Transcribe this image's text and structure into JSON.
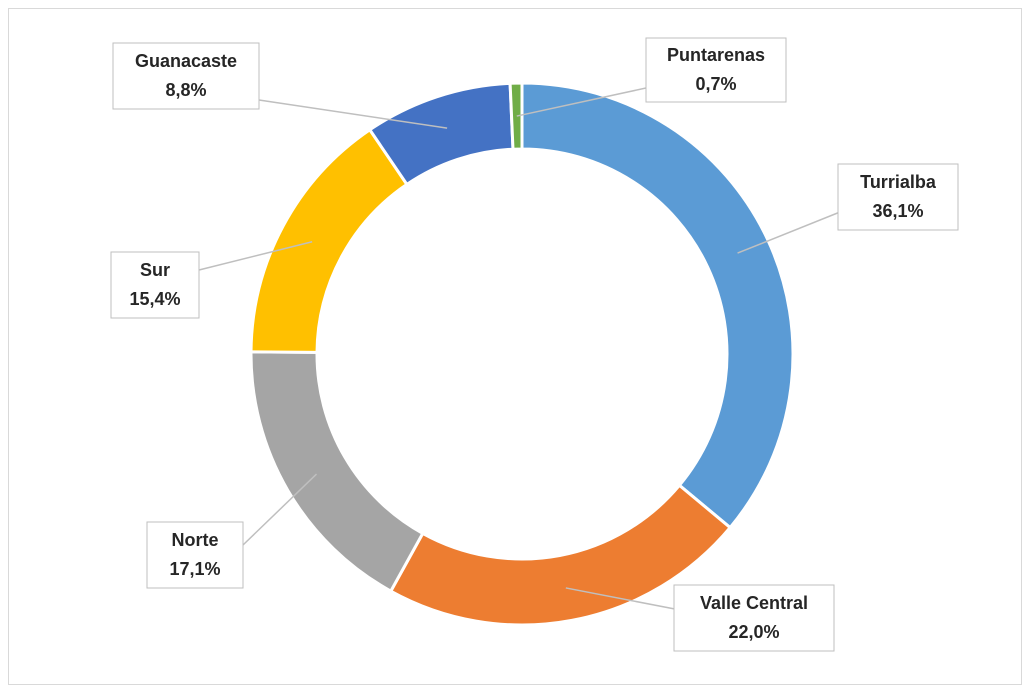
{
  "chart_data": {
    "type": "donut",
    "categories": [
      "Turrialba",
      "Valle Central",
      "Norte",
      "Sur",
      "Guanacaste",
      "Puntarenas"
    ],
    "values": [
      36.1,
      22.0,
      17.1,
      15.4,
      8.8,
      0.7
    ],
    "value_labels": [
      "36,1%",
      "22,0%",
      "17,1%",
      "15,4%",
      "8,8%",
      "0,7%"
    ],
    "colors": [
      "#5b9bd5",
      "#ed7d31",
      "#a5a5a5",
      "#ffc000",
      "#4472c4",
      "#70ad47"
    ]
  }
}
